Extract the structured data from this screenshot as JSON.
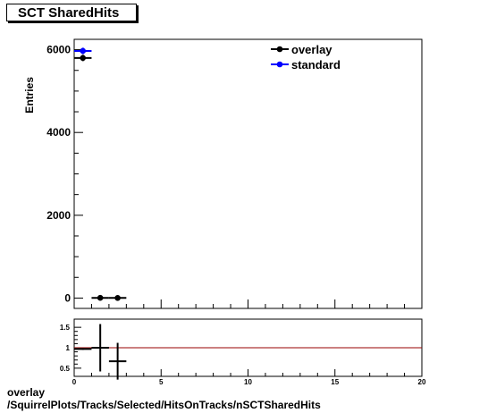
{
  "title": "SCT SharedHits",
  "footer": {
    "line1": "overlay",
    "line2": "/SquirrelPlots/Tracks/Selected/HitsOnTracks/nSCTSharedHits"
  },
  "chart_data": [
    {
      "type": "scatter",
      "title": "SCT SharedHits",
      "ylabel": "Entries",
      "xlabel": "",
      "xlim": [
        0,
        20
      ],
      "ylim": [
        -250,
        6250
      ],
      "y_ticks": [
        0,
        2000,
        4000,
        6000
      ],
      "x_ticks": [],
      "grid": false,
      "legend_position": "top-right",
      "series": [
        {
          "name": "overlay",
          "color": "#000000",
          "marker": "circle",
          "points": [
            {
              "x": 0.5,
              "y": 5800,
              "xerr": 0.5,
              "yerr": 76
            },
            {
              "x": 1.5,
              "y": 5,
              "xerr": 0.5,
              "yerr": 2
            },
            {
              "x": 2.5,
              "y": 3,
              "xerr": 0.5,
              "yerr": 2
            }
          ]
        },
        {
          "name": "standard",
          "color": "#0000ff",
          "marker": "circle",
          "points": [
            {
              "x": 0.5,
              "y": 5970,
              "xerr": 0.5,
              "yerr": 77
            }
          ]
        }
      ]
    },
    {
      "type": "scatter",
      "title": "",
      "xlabel": "",
      "ylabel": "",
      "xlim": [
        0,
        20
      ],
      "ylim": [
        0.3,
        1.7
      ],
      "x_ticks": [
        0,
        5,
        10,
        15,
        20
      ],
      "y_ticks": [
        0.5,
        1,
        1.5
      ],
      "grid": false,
      "reference_line": {
        "y": 1,
        "color": "#990000"
      },
      "series": [
        {
          "name": "",
          "color": "#000000",
          "marker": "none",
          "points": [
            {
              "x": 0.5,
              "y": 0.97,
              "xerr": 0.5,
              "yerr": 0.02
            },
            {
              "x": 1.5,
              "y": 1.0,
              "xerr": 0.5,
              "yerr": 0.58
            },
            {
              "x": 2.5,
              "y": 0.67,
              "xerr": 0.5,
              "yerr": 0.45
            }
          ]
        }
      ]
    }
  ]
}
